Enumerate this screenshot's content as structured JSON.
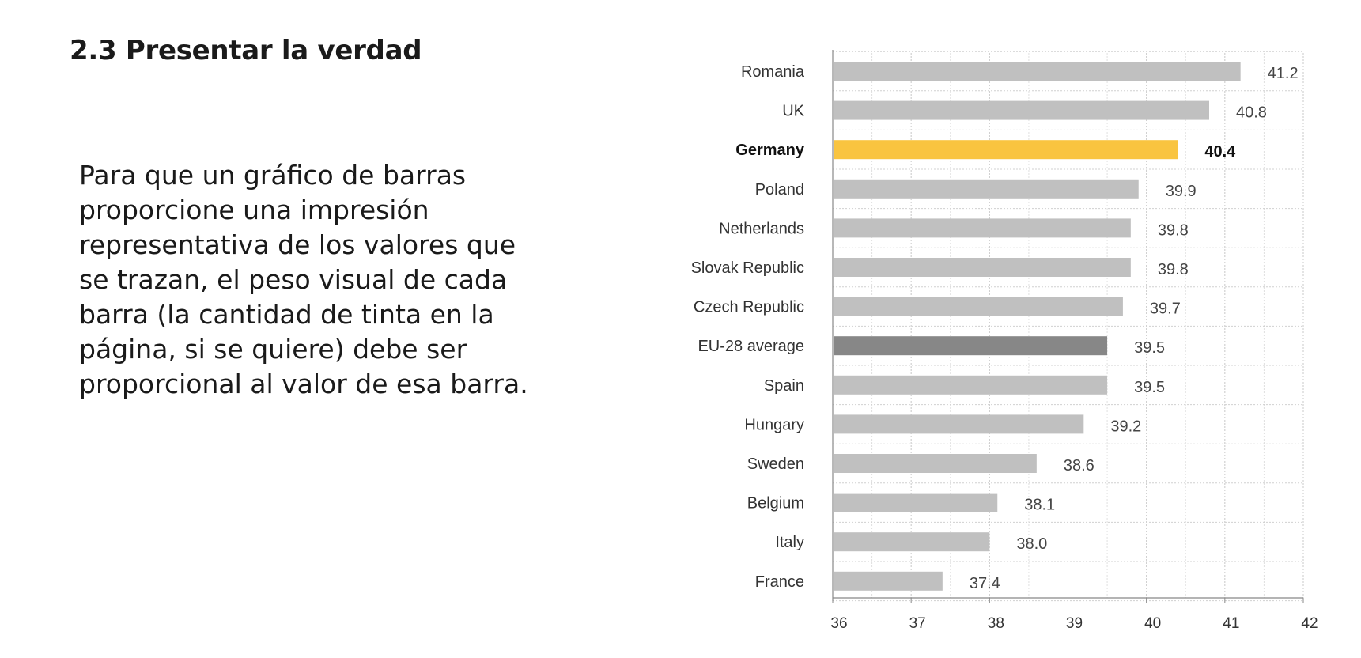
{
  "slide": {
    "title": "2.3 Presentar la verdad",
    "body": "Para que un gráfico de barras proporcione una impresión representativa de los valores que se trazan, el peso visual de cada barra (la cantidad de tinta en la página, si se quiere) debe ser proporcional al valor de esa barra."
  },
  "chart_data": {
    "type": "bar",
    "orientation": "horizontal",
    "title": "",
    "xlabel": "",
    "ylabel": "",
    "categories": [
      "Romania",
      "UK",
      "Germany",
      "Poland",
      "Netherlands",
      "Slovak Republic",
      "Czech Republic",
      "EU-28 average",
      "Spain",
      "Hungary",
      "Sweden",
      "Belgium",
      "Italy",
      "France"
    ],
    "values": [
      41.2,
      40.8,
      40.4,
      39.9,
      39.8,
      39.8,
      39.7,
      39.5,
      39.5,
      39.2,
      38.6,
      38.1,
      38.0,
      37.4
    ],
    "value_labels": [
      "41.2",
      "40.8",
      "40.4",
      "39.9",
      "39.8",
      "39.8",
      "39.7",
      "39.5",
      "39.5",
      "39.2",
      "38.6",
      "38.1",
      "38.0",
      "37.4"
    ],
    "highlight": {
      "Germany": "#f9c440",
      "EU-28 average": "#878787"
    },
    "bold_categories": [
      "Germany"
    ],
    "default_color": "#c0c0c0",
    "xlim": [
      36,
      42
    ],
    "xticks": [
      36,
      37,
      38,
      39,
      40,
      41,
      42
    ],
    "xtick_labels": [
      "36",
      "37",
      "38",
      "39",
      "40",
      "41",
      "42"
    ],
    "grid": true,
    "legend": "none"
  }
}
